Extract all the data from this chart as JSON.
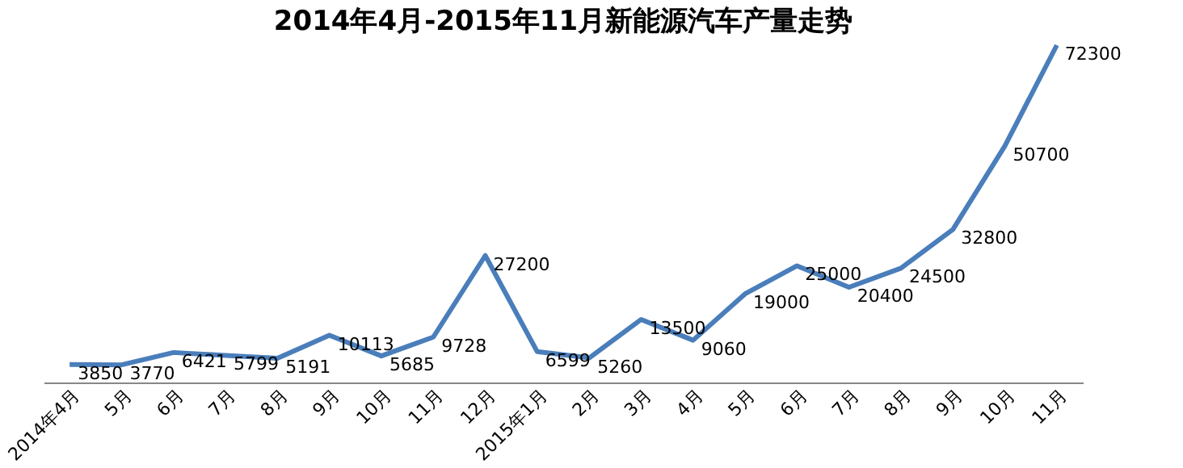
{
  "chart_data": {
    "type": "line",
    "title": "2014年4月-2015年11月新能源汽车产量走势",
    "categories": [
      "2014年4月",
      "5月",
      "6月",
      "7月",
      "8月",
      "9月",
      "10月",
      "11月",
      "12月",
      "2015年1月",
      "2月",
      "3月",
      "4月",
      "5月",
      "6月",
      "7月",
      "8月",
      "9月",
      "10月",
      "11月"
    ],
    "series": [
      {
        "color": "#4a7ebb",
        "values": [
          3850,
          3770,
          6421,
          5799,
          5191,
          10113,
          5685,
          9728,
          27200,
          6599,
          5260,
          13500,
          9060,
          19000,
          25000,
          20400,
          24500,
          32800,
          50700,
          72300
        ]
      }
    ],
    "data_labels": true,
    "tick_labels": "x",
    "marker": "none",
    "line_style": "solid"
  }
}
